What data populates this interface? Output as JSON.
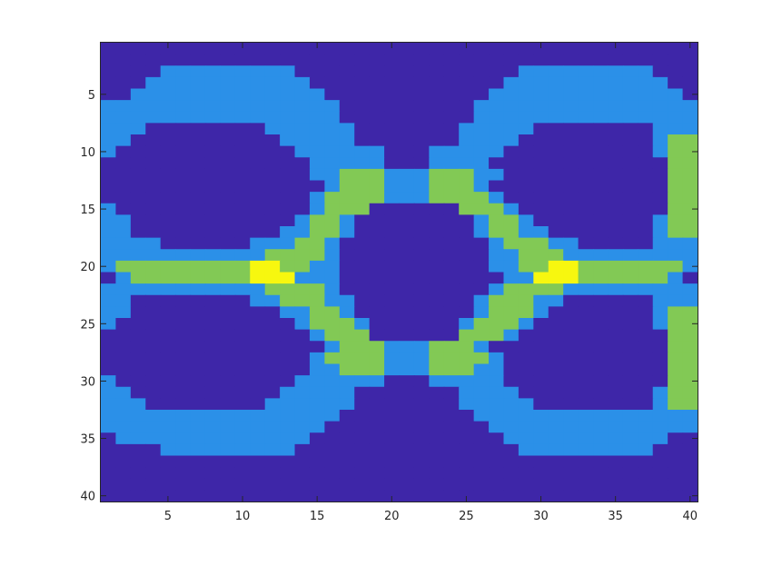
{
  "chart_data": {
    "type": "heatmap",
    "title": "",
    "xlabel": "",
    "ylabel": "",
    "xlim": [
      0.5,
      40.5
    ],
    "ylim": [
      0.5,
      40.5
    ],
    "y_direction": "reversed",
    "grid": false,
    "legend": "none",
    "x_ticks": [
      5,
      10,
      15,
      20,
      25,
      30,
      35,
      40
    ],
    "y_ticks": [
      5,
      10,
      15,
      20,
      25,
      30,
      35,
      40
    ],
    "levels": [
      0,
      1,
      2,
      3
    ],
    "colormap": [
      "#3e26a8",
      "#2b90e8",
      "#82c955",
      "#f7f70f"
    ],
    "rows": [
      "0000000000000000000000000000000000000000",
      "0000000000000000000000000000000000000000",
      "0000111111111000000000000000111111111000",
      "0001111111111100000000000001111111111100",
      "0011111111111110000000000011111111111110",
      "1111111111111111000000000111111111111111",
      "1111111111111111000000000111111111111111",
      "1110000000011111100000001111100000000111",
      "1100000000001111100000001111000000000122",
      "1000000000000111111000111110000000000122",
      "0000000000000011111000111100000000000022",
      "0000000000000011222111222110000000000022",
      "0000000000000001222111222100000000000022",
      "0000000000000012222111222210000000000022",
      "1000000000000012220000002221000000000022",
      "1100000000000122100000000122100000000122",
      "1100000000001122100000000122110000000122",
      "1111000000111221000000000012221100000111",
      "1111111111122221000000000011222111111111",
      "1222222222332211000000000011223322222221",
      "0122222222333111000000000001133322222210",
      "1111111111122221000000000012222111111111",
      "1100000000112221100000000122211000000111",
      "1100000000001122100000000122210000000122",
      "1000000000000122210000001222100000000122",
      "0000000000000012220000002221000000000022",
      "0000000000000001222111222100000000000022",
      "0000000000000012222111222210000000000022",
      "0000000000000011222111222110000000000022",
      "1000000000000111111000111110000000000022",
      "1100000000001111100000001111000000000122",
      "1110000000011111100000001111100000000122",
      "1111111111111111000000000111111111111111",
      "1111111111111110000000000011111111111111",
      "0111111111111100000000000001111111111100",
      "0000111111111000000000000000111111111000",
      "0000000000000000000000000000000000000000",
      "0000000000000000000000000000000000000000",
      "0000000000000000000000000000000000000000",
      "0000000000000000000000000000000000000000"
    ]
  }
}
